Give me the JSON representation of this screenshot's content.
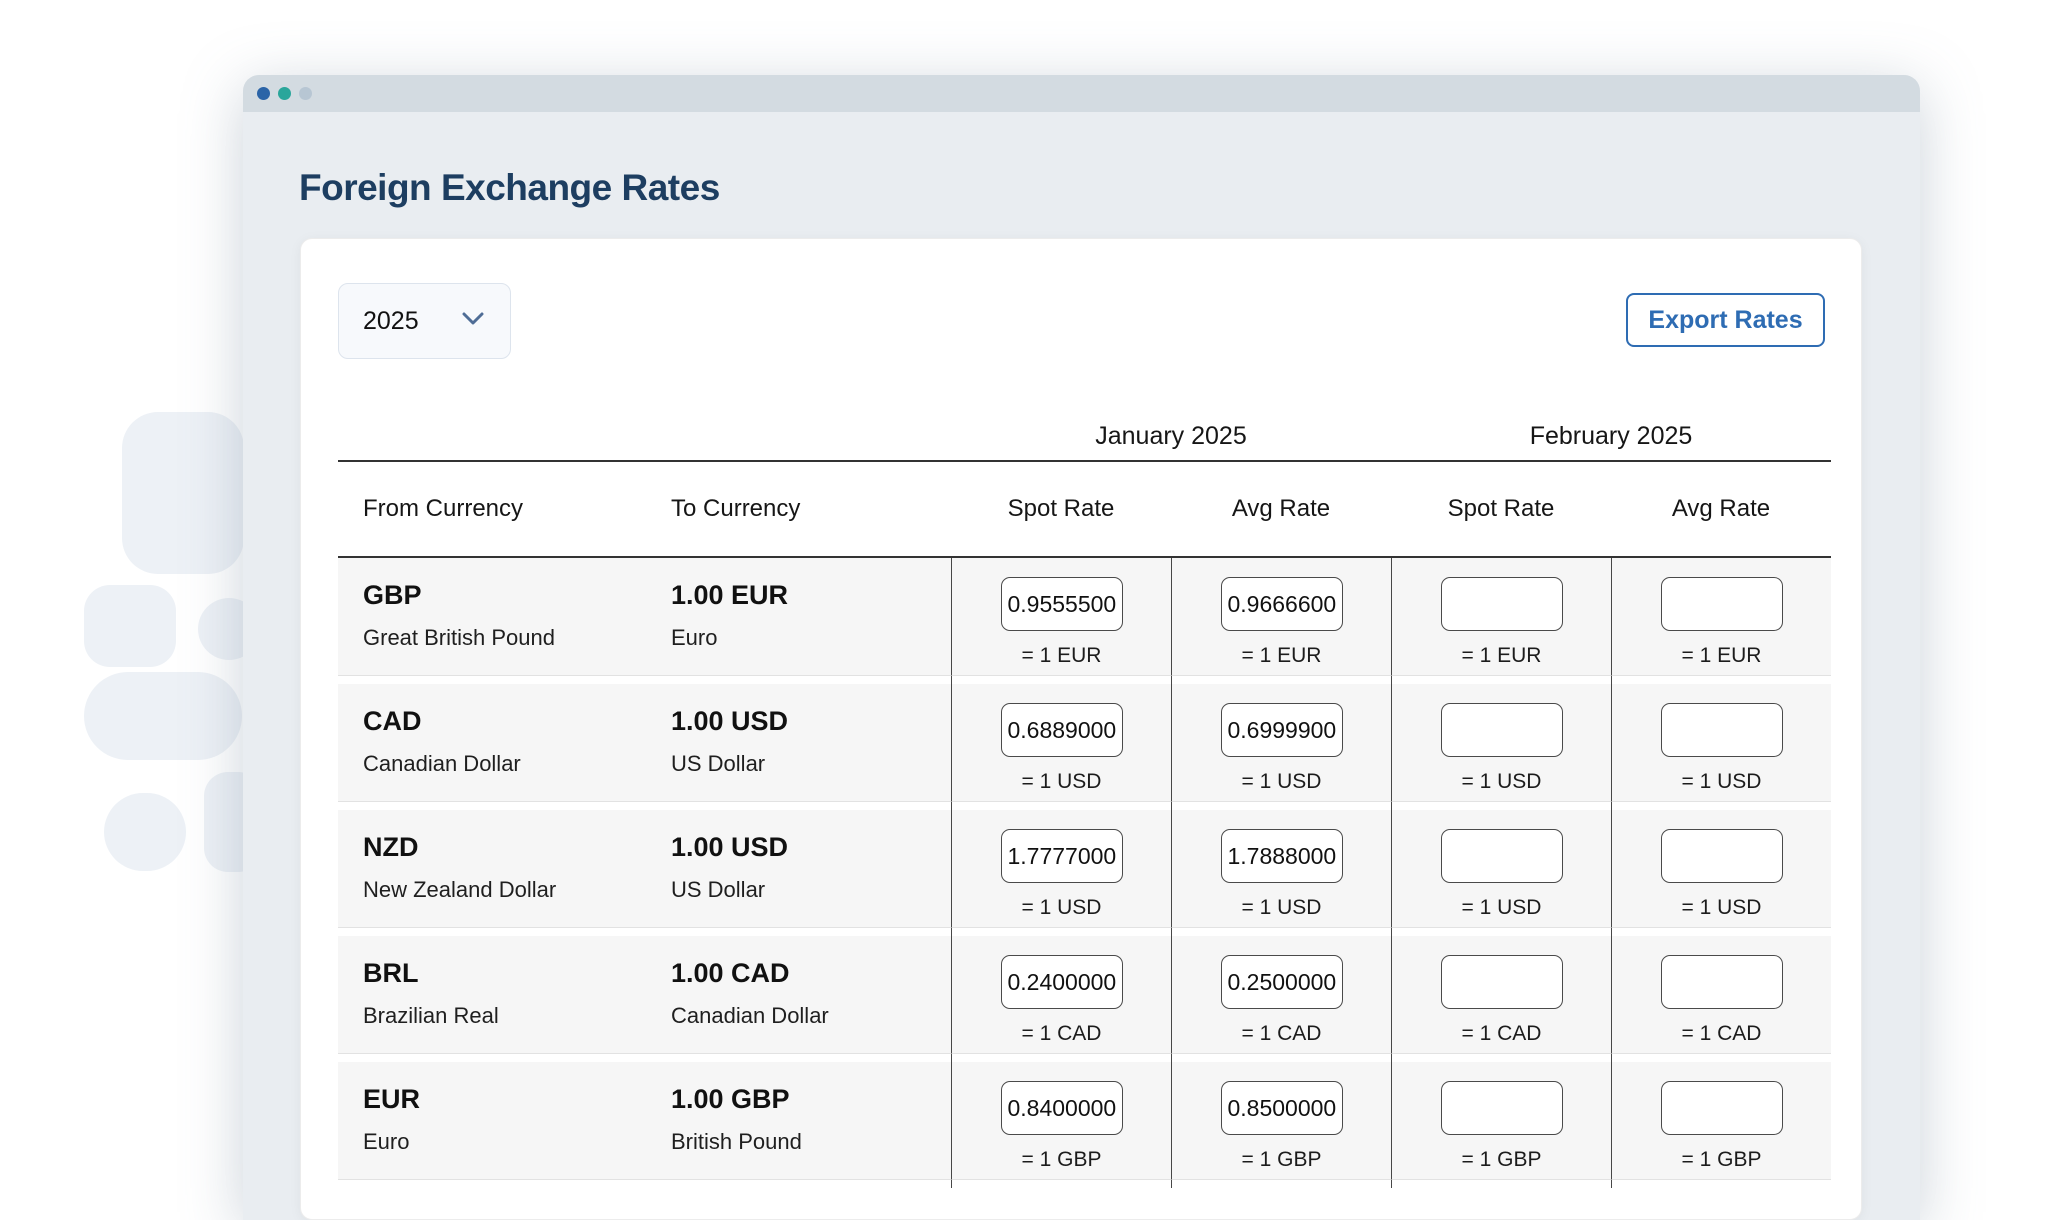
{
  "window": {
    "traffic_dot_colors": [
      "#2b64a7",
      "#2aa69b",
      "#b7c6d3"
    ]
  },
  "header": {
    "title": "Foreign Exchange Rates"
  },
  "toolbar": {
    "year_value": "2025",
    "export_label": "Export Rates",
    "accent_color": "#2e6cb3"
  },
  "table": {
    "month_groups": [
      {
        "label": "January 2025"
      },
      {
        "label": "February 2025"
      }
    ],
    "column_headers": {
      "from": "From Currency",
      "to": "To Currency",
      "spot": "Spot Rate",
      "avg": "Avg Rate"
    },
    "rate_columns": [
      "jan_spot",
      "jan_avg",
      "feb_spot",
      "feb_avg"
    ],
    "rows": [
      {
        "from_code": "GBP",
        "from_name": "Great British Pound",
        "to_amount": "1.00 EUR",
        "to_name": "Euro",
        "unit_label": "= 1 EUR",
        "jan_spot": "0.9555500",
        "jan_avg": "0.9666600",
        "feb_spot": "",
        "feb_avg": ""
      },
      {
        "from_code": "CAD",
        "from_name": "Canadian Dollar",
        "to_amount": "1.00 USD",
        "to_name": "US Dollar",
        "unit_label": "= 1 USD",
        "jan_spot": "0.6889000",
        "jan_avg": "0.6999900",
        "feb_spot": "",
        "feb_avg": ""
      },
      {
        "from_code": "NZD",
        "from_name": "New Zealand Dollar",
        "to_amount": "1.00 USD",
        "to_name": "US Dollar",
        "unit_label": "= 1 USD",
        "jan_spot": "1.7777000",
        "jan_avg": "1.7888000",
        "feb_spot": "",
        "feb_avg": ""
      },
      {
        "from_code": "BRL",
        "from_name": "Brazilian Real",
        "to_amount": "1.00 CAD",
        "to_name": "Canadian Dollar",
        "unit_label": "= 1 CAD",
        "jan_spot": "0.2400000",
        "jan_avg": "0.2500000",
        "feb_spot": "",
        "feb_avg": ""
      },
      {
        "from_code": "EUR",
        "from_name": "Euro",
        "to_amount": "1.00 GBP",
        "to_name": "British Pound",
        "unit_label": "= 1 GBP",
        "jan_spot": "0.8400000",
        "jan_avg": "0.8500000",
        "feb_spot": "",
        "feb_avg": ""
      }
    ]
  }
}
